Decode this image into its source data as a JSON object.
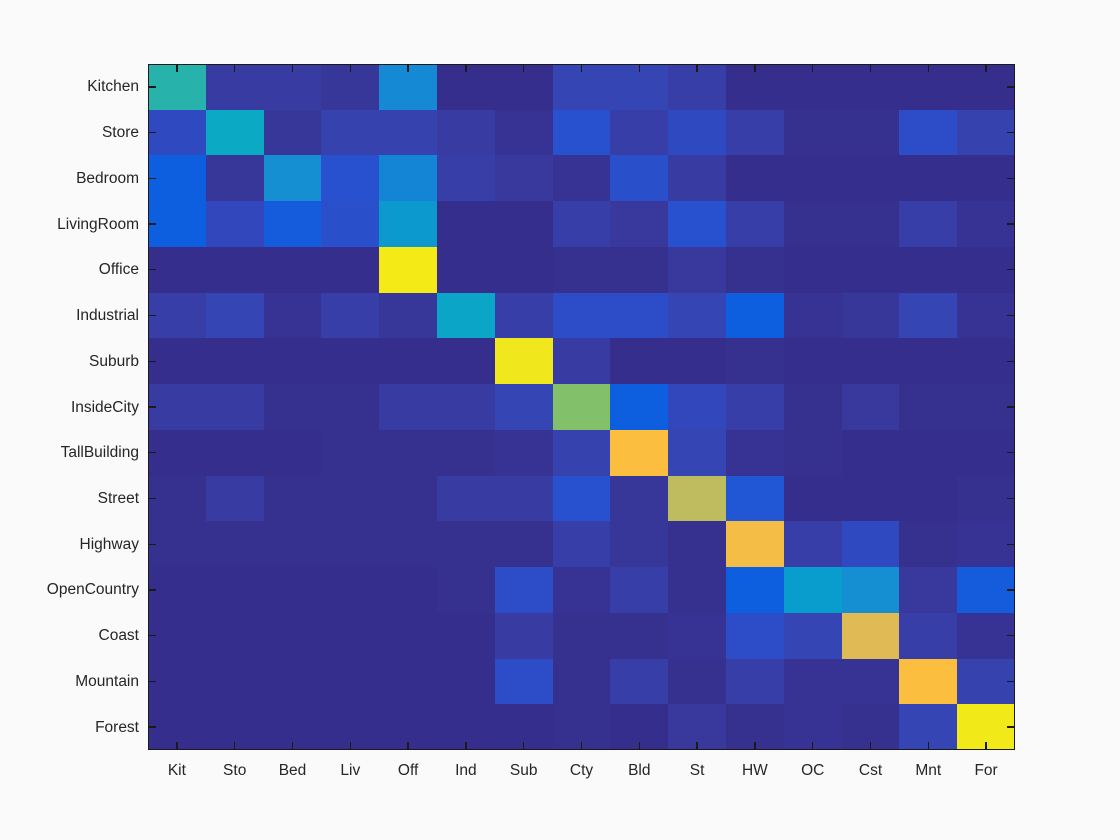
{
  "figure": {
    "background": "#fafafa",
    "frame_color": "#1a1a1a",
    "tick_color": "#1a1a1a",
    "label_color": "#262626"
  },
  "chart_data": {
    "type": "heatmap",
    "title": "",
    "xlabel": "",
    "ylabel": "",
    "legend": "none",
    "grid": false,
    "value_range": [
      0,
      1
    ],
    "row_labels": [
      "Kitchen",
      "Store",
      "Bedroom",
      "LivingRoom",
      "Office",
      "Industrial",
      "Suburb",
      "InsideCity",
      "TallBuilding",
      "Street",
      "Highway",
      "OpenCountry",
      "Coast",
      "Mountain",
      "Forest"
    ],
    "col_labels": [
      "Kit",
      "Sto",
      "Bed",
      "Liv",
      "Off",
      "Ind",
      "Sub",
      "Cty",
      "Bld",
      "St",
      "HW",
      "OC",
      "Cst",
      "Mnt",
      "For"
    ],
    "matrix": [
      [
        0.46,
        0.07,
        0.07,
        0.05,
        0.28,
        0.02,
        0.02,
        0.1,
        0.1,
        0.08,
        0.02,
        0.02,
        0.02,
        0.02,
        0.02
      ],
      [
        0.12,
        0.37,
        0.05,
        0.09,
        0.09,
        0.07,
        0.04,
        0.15,
        0.08,
        0.12,
        0.08,
        0.03,
        0.03,
        0.13,
        0.09
      ],
      [
        0.2,
        0.05,
        0.29,
        0.15,
        0.27,
        0.08,
        0.06,
        0.04,
        0.14,
        0.07,
        0.02,
        0.02,
        0.02,
        0.02,
        0.02
      ],
      [
        0.2,
        0.11,
        0.19,
        0.14,
        0.33,
        0.02,
        0.02,
        0.08,
        0.06,
        0.15,
        0.08,
        0.03,
        0.03,
        0.08,
        0.04
      ],
      [
        0.02,
        0.02,
        0.02,
        0.02,
        0.97,
        0.02,
        0.02,
        0.03,
        0.03,
        0.06,
        0.03,
        0.02,
        0.02,
        0.02,
        0.02
      ],
      [
        0.08,
        0.1,
        0.04,
        0.08,
        0.05,
        0.36,
        0.08,
        0.13,
        0.13,
        0.1,
        0.2,
        0.04,
        0.05,
        0.1,
        0.04
      ],
      [
        0.02,
        0.02,
        0.02,
        0.02,
        0.02,
        0.02,
        0.95,
        0.07,
        0.02,
        0.02,
        0.03,
        0.02,
        0.02,
        0.02,
        0.02
      ],
      [
        0.07,
        0.07,
        0.03,
        0.03,
        0.07,
        0.07,
        0.1,
        0.62,
        0.2,
        0.11,
        0.08,
        0.03,
        0.06,
        0.03,
        0.03
      ],
      [
        0.02,
        0.02,
        0.02,
        0.03,
        0.03,
        0.03,
        0.04,
        0.09,
        0.79,
        0.1,
        0.04,
        0.03,
        0.02,
        0.02,
        0.02
      ],
      [
        0.03,
        0.07,
        0.03,
        0.03,
        0.03,
        0.07,
        0.07,
        0.15,
        0.05,
        0.68,
        0.17,
        0.02,
        0.02,
        0.02,
        0.03
      ],
      [
        0.03,
        0.03,
        0.03,
        0.03,
        0.03,
        0.03,
        0.03,
        0.08,
        0.05,
        0.03,
        0.77,
        0.08,
        0.12,
        0.03,
        0.04
      ],
      [
        0.02,
        0.02,
        0.02,
        0.02,
        0.02,
        0.03,
        0.13,
        0.04,
        0.08,
        0.03,
        0.2,
        0.34,
        0.29,
        0.06,
        0.19
      ],
      [
        0.02,
        0.02,
        0.02,
        0.02,
        0.02,
        0.02,
        0.07,
        0.03,
        0.03,
        0.04,
        0.13,
        0.1,
        0.72,
        0.08,
        0.04
      ],
      [
        0.02,
        0.02,
        0.02,
        0.02,
        0.02,
        0.02,
        0.13,
        0.03,
        0.08,
        0.03,
        0.08,
        0.04,
        0.04,
        0.79,
        0.09
      ],
      [
        0.02,
        0.02,
        0.02,
        0.02,
        0.02,
        0.02,
        0.02,
        0.03,
        0.02,
        0.06,
        0.03,
        0.04,
        0.03,
        0.1,
        0.96
      ]
    ],
    "colormap": "parula",
    "colormap_stops": [
      [
        0.0,
        "#352a87"
      ],
      [
        0.03,
        "#36308f"
      ],
      [
        0.07,
        "#383ba2"
      ],
      [
        0.1,
        "#3545b4"
      ],
      [
        0.13,
        "#2c4cc8"
      ],
      [
        0.17,
        "#2156d4"
      ],
      [
        0.2,
        "#0d5fdf"
      ],
      [
        0.29,
        "#168ed2"
      ],
      [
        0.34,
        "#099dcd"
      ],
      [
        0.37,
        "#0ba9c4"
      ],
      [
        0.46,
        "#28b2ac"
      ],
      [
        0.62,
        "#82c169"
      ],
      [
        0.68,
        "#bfbc5f"
      ],
      [
        0.72,
        "#e0ba55"
      ],
      [
        0.79,
        "#fcbe3e"
      ],
      [
        0.95,
        "#f0e71c"
      ],
      [
        1.0,
        "#f9ef0e"
      ]
    ]
  }
}
